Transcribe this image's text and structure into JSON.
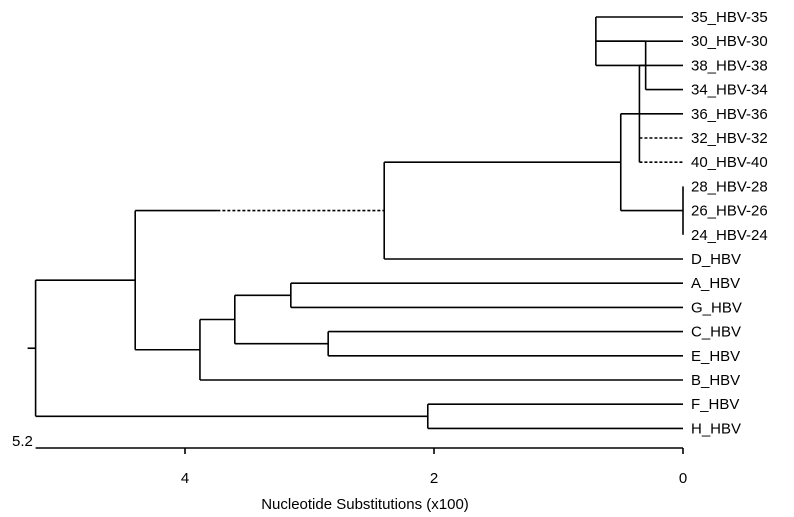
{
  "tree": {
    "leaves": [
      "35_HBV-35",
      "30_HBV-30",
      "38_HBV-38",
      "34_HBV-34",
      "36_HBV-36",
      "32_HBV-32",
      "40_HBV-40",
      "28_HBV-28",
      "26_HBV-26",
      "24_HBV-24",
      "D_HBV",
      "A_HBV",
      "G_HBV",
      "C_HBV",
      "E_HBV",
      "B_HBV",
      "F_HBV",
      "H_HBV"
    ],
    "nodes": [
      {
        "id": "n1",
        "height": 0.7,
        "children": [
          "L0",
          "L1",
          "L2"
        ]
      },
      {
        "id": "n2",
        "height": 0.3,
        "children": [
          "n1",
          "L3"
        ]
      },
      {
        "id": "n3",
        "height": 0.35,
        "children": [
          "n2",
          "L4",
          "L5",
          "L6"
        ],
        "dashed_children": [
          "L5",
          "L6"
        ]
      },
      {
        "id": "n4",
        "height": 0.0,
        "children": [
          "L7",
          "L8",
          "L9"
        ]
      },
      {
        "id": "n5",
        "height": 0.5,
        "children": [
          "n3",
          "n4"
        ]
      },
      {
        "id": "n6",
        "height": 2.4,
        "children": [
          "n5",
          "L10"
        ]
      },
      {
        "id": "nAG",
        "height": 3.15,
        "children": [
          "L11",
          "L12"
        ]
      },
      {
        "id": "nCE",
        "height": 2.85,
        "children": [
          "L13",
          "L14"
        ]
      },
      {
        "id": "nACEG",
        "height": 3.6,
        "children": [
          "nAG",
          "nCE"
        ]
      },
      {
        "id": "nB",
        "height": 3.88,
        "children": [
          "nACEG",
          "L15"
        ]
      },
      {
        "id": "n7",
        "height": 4.4,
        "children": [
          "n6",
          "nB"
        ],
        "partially_dashed_child": "n6"
      },
      {
        "id": "nFH",
        "height": 2.05,
        "children": [
          "L16",
          "L17"
        ]
      },
      {
        "id": "root",
        "height": 5.2,
        "children": [
          "n7",
          "nFH"
        ]
      }
    ]
  },
  "axis": {
    "max": 5.2,
    "max_label": "5.2",
    "ticks": [
      4,
      2,
      0
    ],
    "tick_labels": [
      "4",
      "2",
      "0"
    ],
    "title": "Nucleotide Substitutions (x100)"
  }
}
